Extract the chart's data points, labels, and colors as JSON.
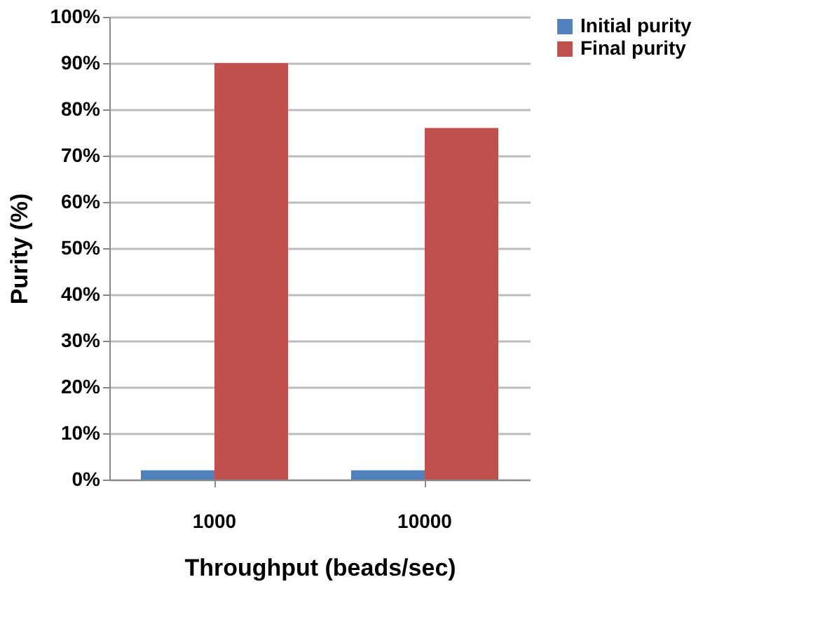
{
  "chart_data": {
    "type": "bar",
    "xlabel": "Throughput (beads/sec)",
    "ylabel": "Purity (%)",
    "categories": [
      "1000",
      "10000"
    ],
    "series": [
      {
        "name": "Initial purity",
        "color": "#4f81bd",
        "values": [
          2,
          2
        ]
      },
      {
        "name": "Final purity",
        "color": "#c0504d",
        "values": [
          90,
          76
        ]
      }
    ],
    "ylim": [
      0,
      100
    ],
    "yticks": [
      {
        "value": 0,
        "label": "0%"
      },
      {
        "value": 10,
        "label": "10%"
      },
      {
        "value": 20,
        "label": "20%"
      },
      {
        "value": 30,
        "label": "30%"
      },
      {
        "value": 40,
        "label": "40%"
      },
      {
        "value": 50,
        "label": "50%"
      },
      {
        "value": 60,
        "label": "60%"
      },
      {
        "value": 70,
        "label": "70%"
      },
      {
        "value": 80,
        "label": "80%"
      },
      {
        "value": 90,
        "label": "90%"
      },
      {
        "value": 100,
        "label": "100%"
      }
    ],
    "grid": "y",
    "legend": "right"
  }
}
